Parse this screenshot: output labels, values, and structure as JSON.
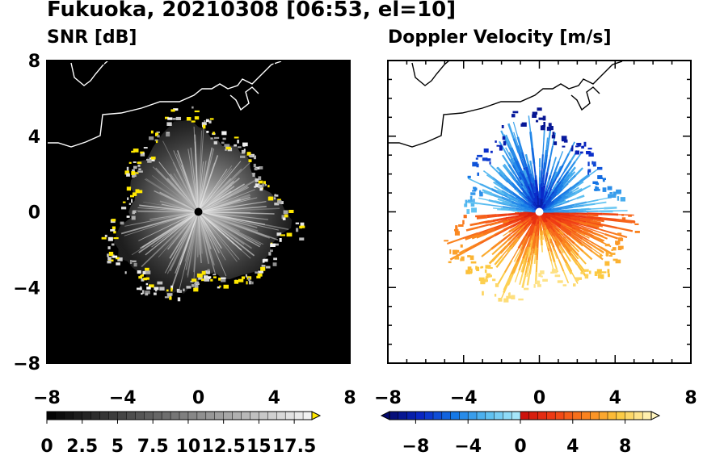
{
  "title": "Fukuoka, 20210308 [06:53, el=10]",
  "chart_data": [
    {
      "type": "heatmap",
      "panel": "left",
      "title": "SNR [dB]",
      "xlim": [
        -8,
        8
      ],
      "ylim": [
        -8,
        8
      ],
      "x_ticks": [
        -8,
        -4,
        0,
        4,
        8
      ],
      "y_ticks": [
        8,
        4,
        0,
        -4,
        -8
      ],
      "x_tick_labels": [
        "−8",
        "−4",
        "0",
        "4",
        "8"
      ],
      "y_tick_labels": [
        "8",
        "4",
        "0",
        "−4",
        "−8"
      ],
      "background_color": "#000000",
      "echo_radius_approx": 4.5,
      "colorbar": {
        "min": 0,
        "max": 18.75,
        "tick_values": [
          0,
          2.5,
          5,
          7.5,
          10,
          12.5,
          15,
          17.5
        ],
        "tick_labels": [
          "0",
          "2.5",
          "5",
          "7.5",
          "10",
          "12.5",
          "15",
          "17.5"
        ],
        "palette": "black-to-white grayscale, yellow over-range",
        "over_color": "#ffe800"
      }
    },
    {
      "type": "heatmap",
      "panel": "right",
      "title": "Doppler Velocity [m/s]",
      "xlim": [
        -8,
        8
      ],
      "ylim": [
        -8,
        8
      ],
      "x_ticks": [
        -8,
        -4,
        0,
        4,
        8
      ],
      "y_ticks": [
        8,
        4,
        0,
        -4,
        -8
      ],
      "x_tick_labels": [
        "−8",
        "−4",
        "0",
        "4",
        "8"
      ],
      "background_color": "#ffffff",
      "echo_radius_approx": 4.5,
      "colorbar": {
        "min": -10,
        "max": 10,
        "tick_values": [
          -8,
          -4,
          0,
          4,
          8
        ],
        "tick_labels": [
          "−8",
          "−4",
          "0",
          "4",
          "8"
        ],
        "palette": "light-cyan-blue-navy for negative, red-orange-yellow for positive"
      }
    }
  ]
}
